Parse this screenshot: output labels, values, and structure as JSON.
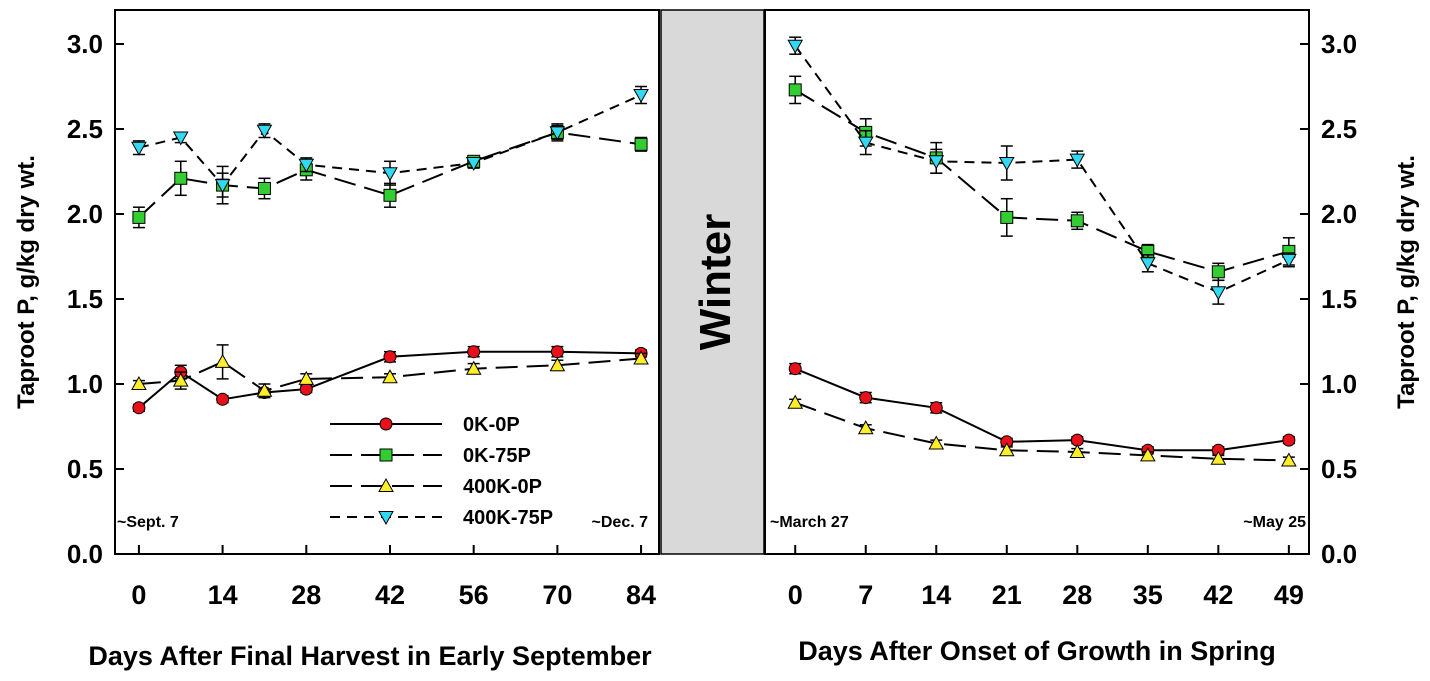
{
  "chart_data": [
    {
      "type": "line",
      "panel": "fall",
      "ylabel": "Taproot P, g/kg dry wt.",
      "xlabel": "Days After Final Harvest in Early September",
      "xlim": [
        -4,
        87
      ],
      "ylim": [
        0,
        3.2
      ],
      "x_ticks": [
        0,
        14,
        28,
        42,
        56,
        70,
        84
      ],
      "y_ticks": [
        0.0,
        0.5,
        1.0,
        1.5,
        2.0,
        2.5,
        3.0
      ],
      "y_tick_labels": [
        "0.0",
        "0.5",
        "1.0",
        "1.5",
        "2.0",
        "2.5",
        "3.0"
      ],
      "annotations": [
        "~Sept. 7",
        "~Dec. 7"
      ],
      "series": [
        {
          "name": "0K-0P",
          "x": [
            0,
            7,
            14,
            21,
            28,
            42,
            56,
            70,
            84
          ],
          "y": [
            0.86,
            1.07,
            0.91,
            0.95,
            0.97,
            1.16,
            1.19,
            1.19,
            1.18
          ],
          "err": [
            0.02,
            0.04,
            0.02,
            0.02,
            0.02,
            0.03,
            0.03,
            0.03,
            0.02
          ]
        },
        {
          "name": "0K-75P",
          "x": [
            0,
            7,
            14,
            21,
            28,
            42,
            56,
            70,
            84
          ],
          "y": [
            1.98,
            2.21,
            2.17,
            2.15,
            2.26,
            2.11,
            2.31,
            2.48,
            2.41
          ],
          "err": [
            0.06,
            0.1,
            0.07,
            0.06,
            0.06,
            0.07,
            0.03,
            0.04,
            0.04
          ]
        },
        {
          "name": "400K-0P",
          "x": [
            0,
            7,
            14,
            21,
            28,
            42,
            56,
            70,
            84
          ],
          "y": [
            1.0,
            1.02,
            1.13,
            0.96,
            1.03,
            1.04,
            1.09,
            1.11,
            1.15
          ],
          "err": [
            0.02,
            0.05,
            0.1,
            0.04,
            0.03,
            0.02,
            0.03,
            0.03,
            0.03
          ]
        },
        {
          "name": "400K-75P",
          "x": [
            0,
            7,
            14,
            21,
            28,
            42,
            56,
            70,
            84
          ],
          "y": [
            2.39,
            2.45,
            2.17,
            2.49,
            2.29,
            2.24,
            2.3,
            2.48,
            2.7
          ],
          "err": [
            0.04,
            0.03,
            0.11,
            0.04,
            0.04,
            0.07,
            0.03,
            0.05,
            0.05
          ]
        }
      ]
    },
    {
      "type": "line",
      "panel": "spring",
      "ylabel": "Taproot P, g/kg dry wt.",
      "xlabel": "Days After Onset of Growth in Spring",
      "xlim": [
        -3,
        51
      ],
      "ylim": [
        0,
        3.2
      ],
      "x_ticks": [
        0,
        7,
        14,
        21,
        28,
        35,
        42,
        49
      ],
      "y_ticks": [
        0.0,
        0.5,
        1.0,
        1.5,
        2.0,
        2.5,
        3.0
      ],
      "y_tick_labels": [
        "0.0",
        "0.5",
        "1.0",
        "1.5",
        "2.0",
        "2.5",
        "3.0"
      ],
      "annotations": [
        "~March 27",
        "~May 25"
      ],
      "series": [
        {
          "name": "0K-0P",
          "x": [
            0,
            7,
            14,
            21,
            28,
            35,
            42,
            49
          ],
          "y": [
            1.09,
            0.92,
            0.86,
            0.66,
            0.67,
            0.61,
            0.61,
            0.67
          ],
          "err": [
            0.03,
            0.03,
            0.03,
            0.02,
            0.02,
            0.02,
            0.02,
            0.02
          ]
        },
        {
          "name": "0K-75P",
          "x": [
            0,
            7,
            14,
            21,
            28,
            35,
            42,
            49
          ],
          "y": [
            2.73,
            2.48,
            2.33,
            1.98,
            1.96,
            1.78,
            1.66,
            1.78
          ],
          "err": [
            0.08,
            0.08,
            0.09,
            0.11,
            0.05,
            0.04,
            0.05,
            0.08
          ]
        },
        {
          "name": "400K-0P",
          "x": [
            0,
            7,
            14,
            21,
            28,
            35,
            42,
            49
          ],
          "y": [
            0.89,
            0.74,
            0.65,
            0.61,
            0.6,
            0.58,
            0.56,
            0.55
          ],
          "err": [
            0.02,
            0.02,
            0.02,
            0.02,
            0.02,
            0.02,
            0.02,
            0.02
          ]
        },
        {
          "name": "400K-75P",
          "x": [
            0,
            7,
            14,
            21,
            28,
            35,
            42,
            49
          ],
          "y": [
            2.99,
            2.42,
            2.31,
            2.3,
            2.32,
            1.71,
            1.54,
            1.73
          ],
          "err": [
            0.05,
            0.07,
            0.07,
            0.1,
            0.05,
            0.05,
            0.07,
            0.04
          ]
        }
      ]
    }
  ],
  "legend": [
    {
      "name": "0K-0P",
      "marker": "circle",
      "color": "#e8101a",
      "dash": "solid"
    },
    {
      "name": "0K-75P",
      "marker": "square",
      "color": "#33cc33",
      "dash": "longdash"
    },
    {
      "name": "400K-0P",
      "marker": "triangle-up",
      "color": "#ffee2a",
      "dash": "longdash"
    },
    {
      "name": "400K-75P",
      "marker": "triangle-down",
      "color": "#33d9f2",
      "dash": "shortdash"
    }
  ],
  "winter_label": "Winter",
  "colors": {
    "winter_fill": "#d9d9d9"
  }
}
